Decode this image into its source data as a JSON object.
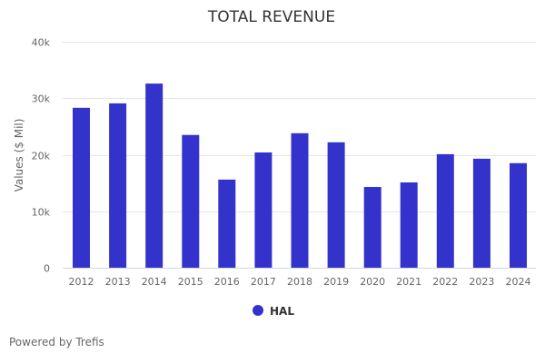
{
  "chart_data": {
    "type": "bar",
    "title": "TOTAL REVENUE",
    "xlabel": "",
    "ylabel": "Values ($ Mil)",
    "ylim": [
      0,
      40000
    ],
    "yticks": [
      0,
      10000,
      20000,
      30000,
      40000
    ],
    "ytick_labels": [
      "0",
      "10k",
      "20k",
      "30k",
      "40k"
    ],
    "grid": true,
    "legend_position": "bottom-center",
    "categories": [
      "2012",
      "2013",
      "2014",
      "2015",
      "2016",
      "2017",
      "2018",
      "2019",
      "2020",
      "2021",
      "2022",
      "2023",
      "2024"
    ],
    "series": [
      {
        "name": "HAL",
        "color": "#3333cc",
        "values": [
          28300,
          29100,
          32600,
          23500,
          15600,
          20400,
          23800,
          22200,
          14300,
          15100,
          20100,
          19300,
          18500
        ]
      }
    ]
  },
  "footer": {
    "credit": "Powered by Trefis"
  }
}
